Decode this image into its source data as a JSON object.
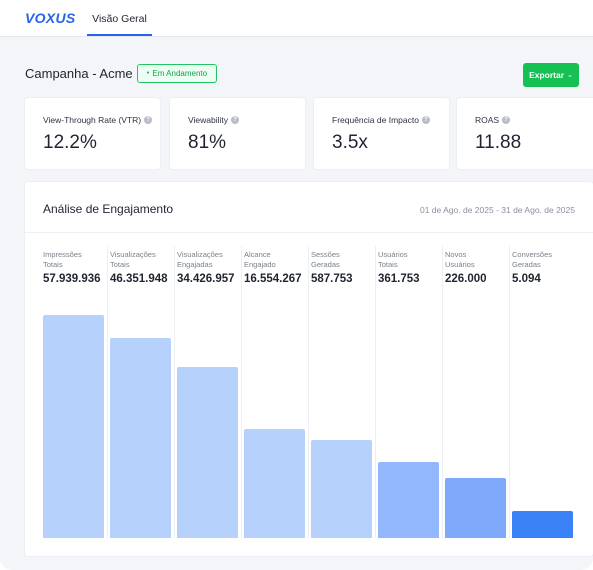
{
  "app": {
    "logo": "VOXUS"
  },
  "nav": {
    "tabs": [
      {
        "label": "Visão Geral",
        "active": true
      }
    ]
  },
  "campaign": {
    "title": "Campanha - Acme",
    "status": "Em Andamento",
    "export_label": "Exportar"
  },
  "metrics": [
    {
      "label": "View-Through Rate (VTR)",
      "value": "12.2%"
    },
    {
      "label": "Viewability",
      "value": "81%"
    },
    {
      "label": "Frequência de Impacto",
      "value": "3.5x"
    },
    {
      "label": "ROAS",
      "value": "11.88"
    }
  ],
  "engagement": {
    "title": "Análise de Engajamento",
    "date_range": "01 de Ago. de 2025 - 31 de Ago. de 2025"
  },
  "chart_data": {
    "type": "bar",
    "categories": [
      "Impressões Totais",
      "Visualizações Totais",
      "Visualizações Engajadas",
      "Alcance Engajado",
      "Sessões Geradas",
      "Usuários Totais",
      "Novos Usuários",
      "Conversões Geradas"
    ],
    "category_lines": [
      [
        "Impressões",
        "Totais"
      ],
      [
        "Visualizações",
        "Totais"
      ],
      [
        "Visualizações",
        "Engajadas"
      ],
      [
        "Alcance",
        "Engajado"
      ],
      [
        "Sessões",
        "Geradas"
      ],
      [
        "Usuários",
        "Totais"
      ],
      [
        "Novos",
        "Usuários"
      ],
      [
        "Conversões",
        "Geradas"
      ]
    ],
    "display_values": [
      "57.939.936",
      "46.351.948",
      "34.426.957",
      "16.554.267",
      "587.753",
      "361.753",
      "226.000",
      "5.094"
    ],
    "values": [
      57939936,
      46351948,
      34426957,
      16554267,
      587753,
      361753,
      226000,
      5094
    ],
    "bar_fill_levels": [
      1.0,
      0.895,
      0.765,
      0.49,
      0.44,
      0.34,
      0.27,
      0.12
    ],
    "colors": [
      "#b7d1fd",
      "#b7d1fd",
      "#b7d1fd",
      "#b7d1fd",
      "#b7d1fd",
      "#92b7fc",
      "#7ea8fa",
      "#3b82f6"
    ],
    "grid": false
  }
}
